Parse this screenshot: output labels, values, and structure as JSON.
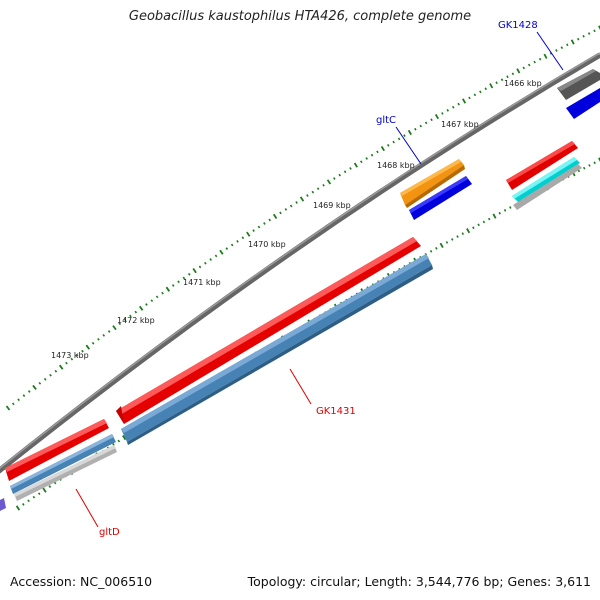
{
  "title": "Geobacillus kaustophilus HTA426, complete genome",
  "genes": {
    "gk1428": "GK1428",
    "gltc": "gltC",
    "gk1431": "GK1431",
    "gltd": "gltD"
  },
  "kbp_labels": [
    "1466 kbp",
    "1467 kbp",
    "1468 kbp",
    "1469 kbp",
    "1470 kbp",
    "1471 kbp",
    "1472 kbp",
    "1473 kbp"
  ],
  "footer": {
    "accession": "Accession: NC_006510",
    "summary": "Topology: circular; Length: 3,544,776 bp; Genes: 3,611"
  },
  "colors": {
    "backbone": "#666666",
    "tick": "#1e7a1e",
    "forward_gene": "#e50000",
    "reverse_gene": "#4682b4",
    "gltc_gene": "#f29312",
    "blue_gene": "#0000dd",
    "cyan_gene": "#00cfcf",
    "label_blue": "#0000cc",
    "label_red": "#dd0000"
  }
}
